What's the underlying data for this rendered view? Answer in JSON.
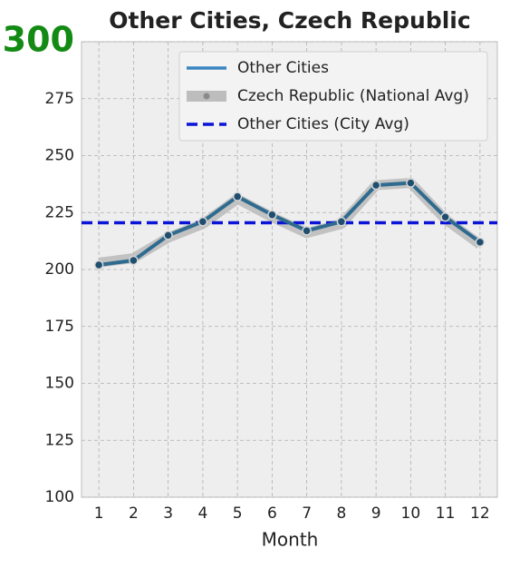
{
  "chart_data": {
    "type": "line",
    "title": "Other Cities, Czech Republic",
    "xlabel": "Month",
    "x": [
      1,
      2,
      3,
      4,
      5,
      6,
      7,
      8,
      9,
      10,
      11,
      12
    ],
    "series": [
      {
        "name": "Other Cities",
        "color": "#2f6b8f",
        "values": [
          202,
          204,
          215,
          221,
          232,
          224,
          217,
          221,
          237,
          238,
          223,
          212
        ]
      },
      {
        "name": "Czech Republic (National Avg)",
        "color": "#bdbdbd",
        "values": [
          203,
          205,
          214,
          220,
          231,
          223,
          216,
          220,
          237,
          238,
          222,
          211
        ]
      }
    ],
    "hlines": [
      {
        "name": "Other Cities (City Avg)",
        "color": "#0a14d6",
        "value": 220.5
      }
    ],
    "xlim": [
      0.5,
      12.5
    ],
    "xticks": [
      1,
      2,
      3,
      4,
      5,
      6,
      7,
      8,
      9,
      10,
      11,
      12
    ],
    "ylim": [
      100,
      300
    ],
    "yticks": [
      100,
      125,
      150,
      175,
      200,
      225,
      250,
      275,
      300
    ],
    "grid": true,
    "legend": "upper right"
  }
}
